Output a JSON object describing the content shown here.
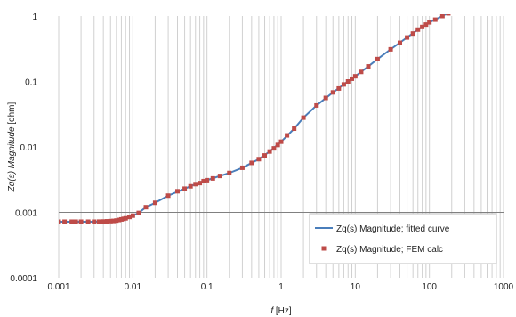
{
  "chart_data": {
    "type": "scatter",
    "xscale": "log",
    "yscale": "log",
    "xlim": [
      0.001,
      1000
    ],
    "ylim": [
      0.0001,
      1
    ],
    "grid": {
      "x_major": true,
      "x_minor": true,
      "y_major": false
    },
    "reference_line_y": 0.001,
    "xlabel": {
      "italic": "f",
      "rest": " [Hz]"
    },
    "ylabel": {
      "italic": "Zq(s) Magnitude",
      "rest": " [ohm]"
    },
    "x_tick_labels": [
      "0.001",
      "0.01",
      "0.1",
      "1",
      "10",
      "100",
      "1000"
    ],
    "y_tick_labels": [
      "0.0001",
      "0.001",
      "0.01",
      "0.1",
      "1"
    ],
    "legend_position": "lower-right",
    "colors": {
      "fitted": "#4a7ebb",
      "fem": "#be4b48",
      "grid": "#d0d0d0",
      "reference": "#808080"
    },
    "series": [
      {
        "name": "Zq(s) Magnitude; fitted curve",
        "style": "line",
        "x": [
          0.001,
          0.002,
          0.003,
          0.004,
          0.005,
          0.006,
          0.007,
          0.008,
          0.01,
          0.012,
          0.015,
          0.02,
          0.03,
          0.05,
          0.07,
          0.1,
          0.15,
          0.2,
          0.3,
          0.5,
          0.7,
          1,
          1.5,
          2,
          3,
          5,
          7,
          10,
          15,
          20,
          30,
          50,
          70,
          100,
          150,
          200
        ],
        "y": [
          0.00072,
          0.00072,
          0.00072,
          0.000725,
          0.000735,
          0.00075,
          0.00078,
          0.00081,
          0.00089,
          0.00098,
          0.0012,
          0.0014,
          0.0018,
          0.0023,
          0.0027,
          0.0031,
          0.0036,
          0.004,
          0.0048,
          0.0065,
          0.0085,
          0.012,
          0.019,
          0.028,
          0.043,
          0.068,
          0.09,
          0.12,
          0.17,
          0.22,
          0.31,
          0.47,
          0.62,
          0.8,
          1.0,
          1.2
        ]
      },
      {
        "name": "Zq(s) Magnitude; FEM calc",
        "style": "markers",
        "x": [
          0.001,
          0.0012,
          0.0015,
          0.0017,
          0.002,
          0.0025,
          0.003,
          0.0035,
          0.004,
          0.0045,
          0.005,
          0.0055,
          0.006,
          0.0065,
          0.007,
          0.0075,
          0.008,
          0.009,
          0.01,
          0.012,
          0.015,
          0.02,
          0.03,
          0.04,
          0.05,
          0.06,
          0.07,
          0.08,
          0.09,
          0.1,
          0.12,
          0.15,
          0.2,
          0.3,
          0.4,
          0.5,
          0.6,
          0.7,
          0.8,
          0.9,
          1,
          1.2,
          1.5,
          2,
          3,
          4,
          5,
          6,
          7,
          8,
          9,
          10,
          12,
          15,
          20,
          30,
          40,
          50,
          60,
          70,
          80,
          90,
          100,
          120,
          150,
          180
        ],
        "y": [
          0.00072,
          0.00072,
          0.00072,
          0.00072,
          0.00072,
          0.00072,
          0.00072,
          0.000722,
          0.000725,
          0.00073,
          0.000735,
          0.00074,
          0.00075,
          0.000765,
          0.00078,
          0.000795,
          0.00081,
          0.00085,
          0.00089,
          0.00098,
          0.0012,
          0.0014,
          0.0018,
          0.0021,
          0.0023,
          0.0025,
          0.0027,
          0.0028,
          0.003,
          0.0031,
          0.0033,
          0.0036,
          0.004,
          0.0048,
          0.0057,
          0.0065,
          0.0074,
          0.0085,
          0.0095,
          0.0107,
          0.012,
          0.015,
          0.019,
          0.028,
          0.043,
          0.056,
          0.068,
          0.078,
          0.09,
          0.1,
          0.11,
          0.12,
          0.14,
          0.17,
          0.22,
          0.31,
          0.39,
          0.47,
          0.54,
          0.62,
          0.68,
          0.74,
          0.8,
          0.88,
          1.0,
          1.1
        ]
      }
    ]
  }
}
